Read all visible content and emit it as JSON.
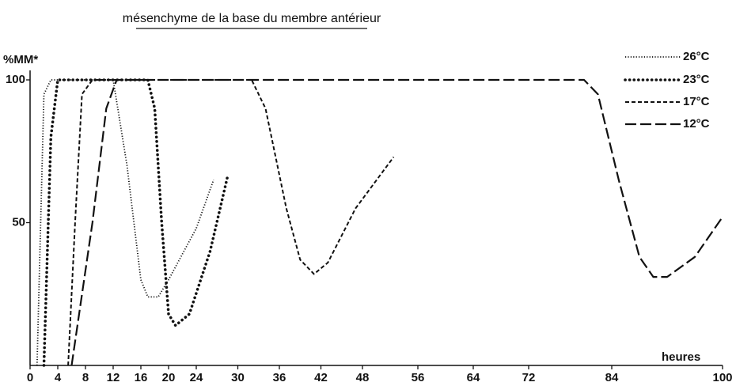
{
  "chart_data": {
    "type": "line",
    "title": "mésenchyme de la base du membre antérieur",
    "y_label": "%MM*",
    "x_label": "heures",
    "xlim": [
      0,
      100
    ],
    "ylim": [
      0,
      100
    ],
    "xticks": [
      0,
      4,
      8,
      12,
      16,
      20,
      24,
      30,
      36,
      42,
      48,
      56,
      64,
      72,
      84,
      100
    ],
    "yticks": [
      50,
      100
    ],
    "legend": "top-right",
    "series": [
      {
        "name": "26°C",
        "color": "#111111",
        "x": [
          1,
          2,
          3,
          12,
          14,
          16,
          17,
          18.5,
          20,
          24,
          26.5
        ],
        "values": [
          0,
          95,
          100,
          100,
          70,
          30,
          24,
          24,
          30,
          48,
          65
        ]
      },
      {
        "name": "23°C",
        "color": "#111111",
        "x": [
          2,
          3,
          4,
          17,
          18,
          19,
          20,
          21,
          23,
          26,
          28.5
        ],
        "values": [
          0,
          80,
          100,
          100,
          90,
          50,
          18,
          14,
          18,
          40,
          66
        ]
      },
      {
        "name": "17°C",
        "color": "#111111",
        "x": [
          5.5,
          6.5,
          7.5,
          9,
          32,
          34,
          37,
          39,
          41,
          43,
          47,
          52.5
        ],
        "values": [
          0,
          50,
          95,
          100,
          100,
          90,
          55,
          37,
          32,
          36,
          55,
          73
        ]
      },
      {
        "name": "12°C",
        "color": "#111111",
        "x": [
          6,
          9,
          11,
          12.5,
          80,
          82,
          85,
          88,
          90,
          92,
          96,
          100
        ],
        "values": [
          0,
          50,
          90,
          100,
          100,
          95,
          65,
          38,
          31,
          31,
          38,
          52
        ]
      }
    ]
  }
}
